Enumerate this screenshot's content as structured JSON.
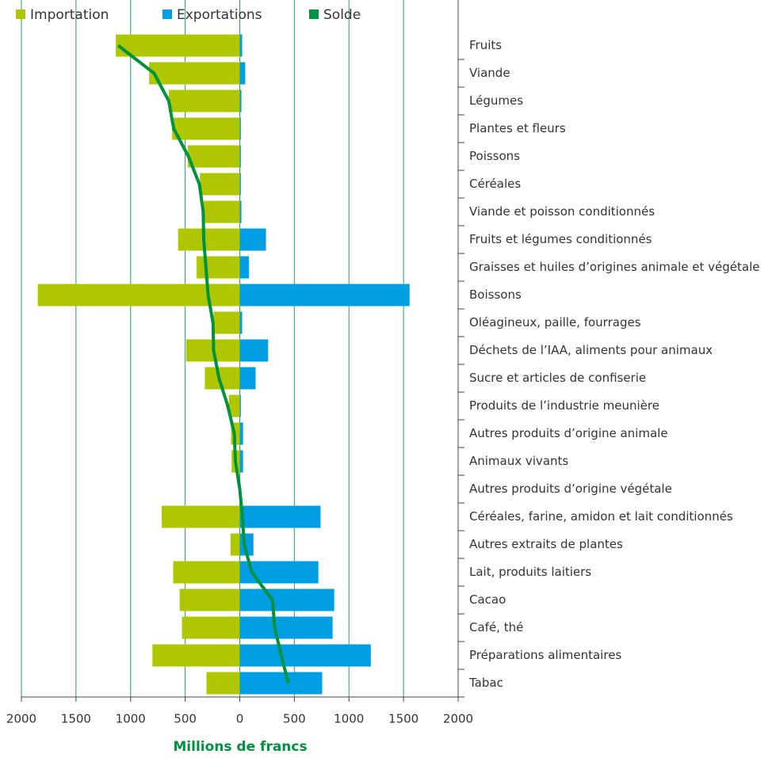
{
  "chart_data": {
    "type": "diverging-bar",
    "x_label": "Millions de francs",
    "categories": [
      "Fruits",
      "Viande",
      "Légumes",
      "Plantes et fleurs",
      "Poissons",
      "Céréales",
      "Viande et poisson conditionnés",
      "Fruits et légumes conditionnés",
      "Graisses et huiles d’origines animale et végétale",
      "Boissons",
      "Oléagineux, paille, fourrages",
      "Déchets de l’IAA, aliments pour animaux",
      "Sucre et articles de confiserie",
      "Produits de l’industrie meunière",
      "Autres produits d’origine animale",
      "Animaux vivants",
      "Autres produits d’origine végétale",
      "Céréales, farine, amidon et lait conditionnés",
      "Autres extraits de plantes",
      "Lait, produits laitiers",
      "Cacao",
      "Café, thé",
      "Préparations alimentaires",
      "Tabac"
    ],
    "series": [
      {
        "name": "Importation",
        "color": "#aec700",
        "kind": "bar",
        "values": [
          -1135,
          -830,
          -650,
          -620,
          -475,
          -365,
          -330,
          -565,
          -395,
          -1850,
          -240,
          -490,
          -320,
          -100,
          -80,
          -75,
          -5,
          -715,
          -85,
          -610,
          -550,
          -530,
          -800,
          -305
        ]
      },
      {
        "name": "Exportations",
        "color": "#009fe3",
        "kind": "bar",
        "values": [
          22,
          50,
          15,
          10,
          10,
          10,
          15,
          240,
          85,
          1555,
          22,
          260,
          145,
          10,
          30,
          30,
          5,
          740,
          125,
          720,
          865,
          850,
          1200,
          755
        ]
      },
      {
        "name": "Solde",
        "color": "#00923f",
        "kind": "line",
        "values": [
          -1113,
          -785,
          -650,
          -605,
          -470,
          -370,
          -335,
          -330,
          -310,
          -290,
          -245,
          -240,
          -190,
          -110,
          -50,
          -40,
          0,
          25,
          40,
          110,
          300,
          320,
          380,
          445
        ]
      }
    ],
    "xlim": [
      -2000,
      2000
    ],
    "xticks": [
      {
        "value": -2000,
        "label": "2000"
      },
      {
        "value": -1500,
        "label": "1500"
      },
      {
        "value": -1000,
        "label": "1000"
      },
      {
        "value": -500,
        "label": "500"
      },
      0,
      500,
      1000,
      1500,
      2000
    ],
    "grid": true,
    "grid_color": "#2e9e5b"
  }
}
